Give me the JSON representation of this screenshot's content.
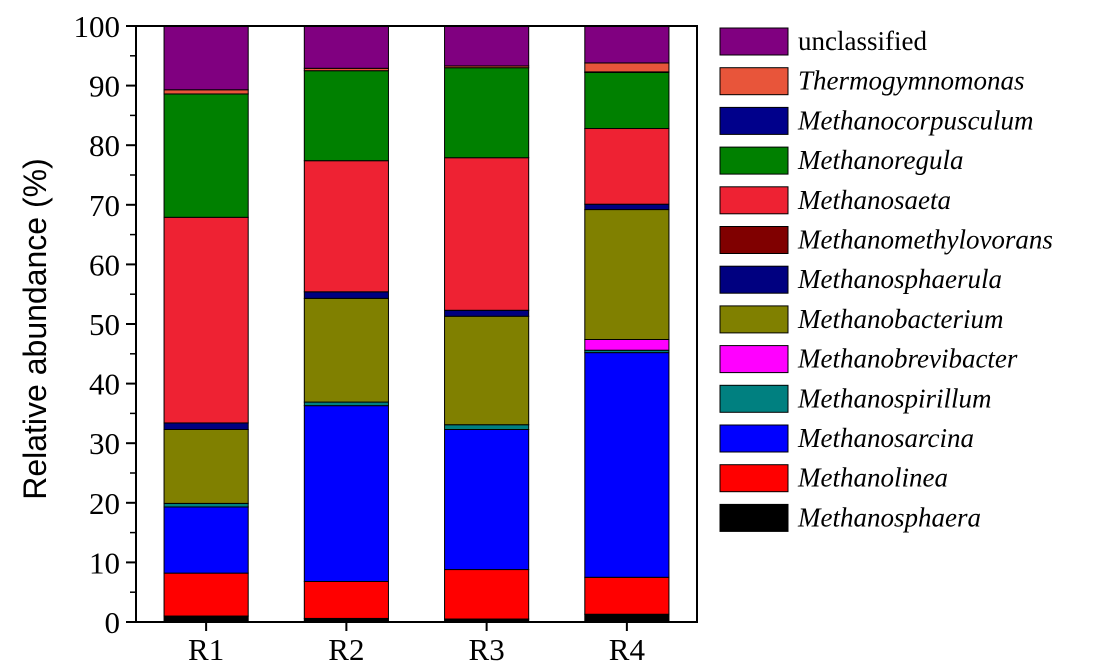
{
  "chart_data": {
    "type": "bar",
    "stacked": true,
    "categories": [
      "R1",
      "R2",
      "R3",
      "R4"
    ],
    "ylabel": "Relative abundance (%)",
    "ylim": [
      0,
      100
    ],
    "yticks": [
      "0",
      "10",
      "20",
      "30",
      "40",
      "50",
      "60",
      "70",
      "80",
      "90",
      "100"
    ],
    "legend_position": "right",
    "series": [
      {
        "name": "Methanosphaera",
        "color": "#000000",
        "italic": true,
        "values": [
          1.0,
          0.6,
          0.5,
          1.3
        ]
      },
      {
        "name": "Methanolinea",
        "color": "#ff0000",
        "italic": true,
        "values": [
          7.2,
          6.2,
          8.3,
          6.2
        ]
      },
      {
        "name": "Methanosarcina",
        "color": "#0000ff",
        "italic": true,
        "values": [
          11.1,
          29.5,
          23.5,
          37.7
        ]
      },
      {
        "name": "Methanospirillum",
        "color": "#008080",
        "italic": true,
        "values": [
          0.6,
          0.6,
          0.8,
          0.4
        ]
      },
      {
        "name": "Methanobrevibacter",
        "color": "#ff00ff",
        "italic": true,
        "values": [
          0.0,
          0.0,
          0.0,
          1.8
        ]
      },
      {
        "name": "Methanobacterium",
        "color": "#808000",
        "italic": true,
        "values": [
          12.4,
          17.4,
          18.2,
          21.8
        ]
      },
      {
        "name": "Methanosphaerula",
        "color": "#000080",
        "italic": true,
        "values": [
          1.1,
          1.1,
          1.0,
          0.9
        ]
      },
      {
        "name": "Methanomethylovorans",
        "color": "#800000",
        "italic": true,
        "values": [
          0.0,
          0.0,
          0.0,
          0.0
        ]
      },
      {
        "name": "Methanosaeta",
        "color": "#ee2233",
        "italic": true,
        "values": [
          34.5,
          22.0,
          25.6,
          12.7
        ]
      },
      {
        "name": "Methanoregula",
        "color": "#008000",
        "italic": true,
        "values": [
          20.7,
          15.1,
          15.1,
          9.4
        ]
      },
      {
        "name": "Methanocorpusculum",
        "color": "#00008b",
        "italic": true,
        "values": [
          0.0,
          0.0,
          0.0,
          0.1
        ]
      },
      {
        "name": "Thermogymnomonas",
        "color": "#e8553a",
        "italic": true,
        "values": [
          0.7,
          0.4,
          0.3,
          1.5
        ]
      },
      {
        "name": "unclassified",
        "color": "#800080",
        "italic": false,
        "values": [
          10.7,
          7.1,
          6.7,
          6.2
        ]
      }
    ]
  }
}
